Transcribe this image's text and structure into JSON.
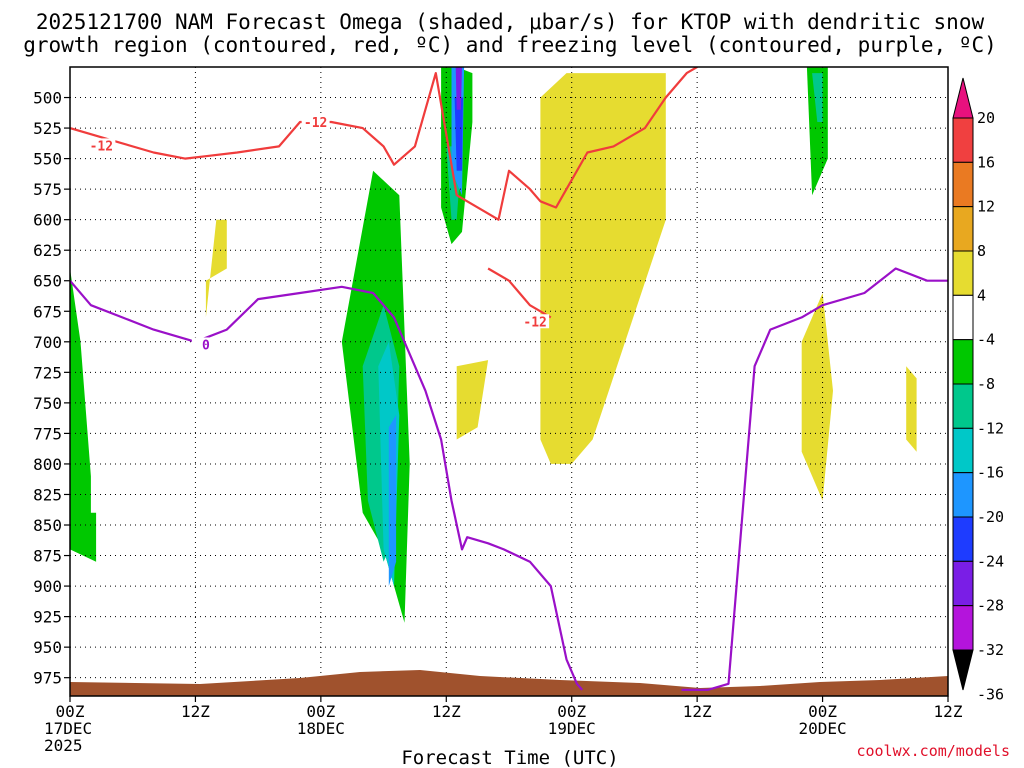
{
  "chart_data": {
    "type": "heatmap",
    "title_line1": "2025121700 NAM Forecast Omega (shaded, μbar/s) for KTOP with dendritic snow",
    "title_line2": "growth region (contoured, red, ºC) and freezing level (contoured, purple, ºC)",
    "xlabel": "Forecast Time (UTC)",
    "credit": "coolwx.com/models",
    "x_range_hours": [
      0,
      84
    ],
    "y_range_mb": [
      475,
      990
    ],
    "y_ticks": [
      500,
      525,
      550,
      575,
      600,
      625,
      650,
      675,
      700,
      725,
      750,
      775,
      800,
      825,
      850,
      875,
      900,
      925,
      950,
      975
    ],
    "x_ticks": [
      {
        "hour": 0,
        "line1": "00Z",
        "line2": "17DEC",
        "line3": "2025"
      },
      {
        "hour": 12,
        "line1": "12Z",
        "line2": "",
        "line3": ""
      },
      {
        "hour": 24,
        "line1": "00Z",
        "line2": "18DEC",
        "line3": ""
      },
      {
        "hour": 36,
        "line1": "12Z",
        "line2": "",
        "line3": ""
      },
      {
        "hour": 48,
        "line1": "00Z",
        "line2": "19DEC",
        "line3": ""
      },
      {
        "hour": 60,
        "line1": "12Z",
        "line2": "",
        "line3": ""
      },
      {
        "hour": 72,
        "line1": "00Z",
        "line2": "20DEC",
        "line3": ""
      },
      {
        "hour": 84,
        "line1": "12Z",
        "line2": "",
        "line3": ""
      }
    ],
    "colorbar": {
      "levels": [
        "20",
        "16",
        "12",
        "8",
        "4",
        "-4",
        "-8",
        "-12",
        "-16",
        "-20",
        "-24",
        "-28",
        "-32",
        "-36"
      ],
      "bins": [
        {
          "lo": 20,
          "hi": 24,
          "color": "#e8117e"
        },
        {
          "lo": 16,
          "hi": 20,
          "color": "#f04040"
        },
        {
          "lo": 12,
          "hi": 16,
          "color": "#ea7a22"
        },
        {
          "lo": 8,
          "hi": 12,
          "color": "#e8a820"
        },
        {
          "lo": 4,
          "hi": 8,
          "color": "#e6dc30"
        },
        {
          "lo": -4,
          "hi": 4,
          "color": "#ffffff"
        },
        {
          "lo": -8,
          "hi": -4,
          "color": "#00c800"
        },
        {
          "lo": -12,
          "hi": -8,
          "color": "#00c88c"
        },
        {
          "lo": -16,
          "hi": -12,
          "color": "#00c8c8"
        },
        {
          "lo": -20,
          "hi": -16,
          "color": "#1e96ff"
        },
        {
          "lo": -24,
          "hi": -20,
          "color": "#1e3cff"
        },
        {
          "lo": -28,
          "hi": -24,
          "color": "#7a1ee6"
        },
        {
          "lo": -32,
          "hi": -28,
          "color": "#b414dc"
        },
        {
          "lo": -36,
          "hi": -32,
          "color": "#a0a0a0"
        }
      ]
    },
    "omega_regions": [
      {
        "name": "green-early",
        "color": "#00c800",
        "hours": [
          0,
          0,
          2.5,
          2.5,
          2,
          2,
          1
        ],
        "mb": [
          640,
          870,
          880,
          840,
          840,
          810,
          700
        ]
      },
      {
        "name": "yellow-12z",
        "color": "#e6dc30",
        "hours": [
          13,
          15,
          15,
          14,
          13
        ],
        "mb": [
          650,
          640,
          600,
          600,
          680
        ]
      },
      {
        "name": "yellow-tall-19dec",
        "color": "#e6dc30",
        "hours": [
          47.5,
          57,
          57,
          50,
          48,
          46,
          45,
          45
        ],
        "mb": [
          480,
          480,
          600,
          780,
          800,
          800,
          780,
          500
        ]
      },
      {
        "name": "yellow-mid",
        "color": "#e6dc30",
        "hours": [
          37,
          40,
          39,
          37
        ],
        "mb": [
          720,
          715,
          770,
          780
        ]
      },
      {
        "name": "yellow-20dec",
        "color": "#e6dc30",
        "hours": [
          70,
          72,
          73,
          72,
          70
        ],
        "mb": [
          700,
          660,
          740,
          830,
          790
        ]
      },
      {
        "name": "yellow-right",
        "color": "#e6dc30",
        "hours": [
          80,
          81,
          81,
          80
        ],
        "mb": [
          720,
          730,
          790,
          780
        ]
      },
      {
        "name": "green-main",
        "color": "#00c800",
        "hours": [
          26,
          29,
          31.5,
          32.5,
          32,
          30,
          28
        ],
        "mb": [
          700,
          560,
          580,
          800,
          930,
          870,
          840
        ]
      },
      {
        "name": "teal-main",
        "color": "#00c88c",
        "hours": [
          28,
          30,
          31.5,
          31,
          30,
          28.5
        ],
        "mb": [
          720,
          670,
          720,
          860,
          880,
          830
        ]
      },
      {
        "name": "cyan-main",
        "color": "#00c8c8",
        "hours": [
          29.5,
          30.5,
          31.5,
          31,
          30
        ],
        "mb": [
          720,
          700,
          760,
          900,
          870
        ]
      },
      {
        "name": "blue-main",
        "color": "#1e96ff",
        "hours": [
          30.5,
          31.2,
          31.2,
          30.5
        ],
        "mb": [
          770,
          760,
          880,
          900
        ]
      },
      {
        "name": "green-column",
        "color": "#00c800",
        "hours": [
          35.5,
          37,
          38.5,
          38.5,
          37.5,
          36.5,
          35.5
        ],
        "mb": [
          475,
          475,
          480,
          520,
          610,
          620,
          590
        ]
      },
      {
        "name": "teal-column",
        "color": "#00c88c",
        "hours": [
          36,
          37.5,
          37,
          36.5
        ],
        "mb": [
          540,
          540,
          600,
          600
        ]
      },
      {
        "name": "blue-column",
        "color": "#1e96ff",
        "hours": [
          36.5,
          37.7,
          37.5,
          36.5
        ],
        "mb": [
          475,
          475,
          580,
          560
        ]
      },
      {
        "name": "navy-column",
        "color": "#1e3cff",
        "hours": [
          36.8,
          37.6,
          37.5,
          37
        ],
        "mb": [
          500,
          500,
          560,
          560
        ]
      },
      {
        "name": "purple-column",
        "color": "#7a1ee6",
        "hours": [
          36.9,
          37.5,
          37.4,
          37
        ],
        "mb": [
          475,
          475,
          510,
          510
        ]
      },
      {
        "name": "green-20dec",
        "color": "#00c800",
        "hours": [
          70.5,
          72.5,
          72.5,
          71
        ],
        "mb": [
          475,
          475,
          550,
          580
        ]
      },
      {
        "name": "teal-20dec",
        "color": "#00c88c",
        "hours": [
          71,
          72,
          72,
          71.5
        ],
        "mb": [
          480,
          480,
          520,
          520
        ]
      }
    ],
    "red_contour_label": "-12",
    "red_contour_upper": {
      "hours": [
        0,
        4,
        8,
        11,
        13,
        16,
        20,
        22,
        25,
        28,
        30,
        31,
        33,
        35,
        37,
        40,
        41,
        42,
        44,
        45,
        46.5,
        47.5,
        49.5,
        52,
        55,
        57,
        59,
        60
      ],
      "mb": [
        525,
        535,
        545,
        550,
        548,
        545,
        540,
        520,
        520,
        525,
        540,
        555,
        540,
        480,
        580,
        595,
        600,
        560,
        575,
        585,
        590,
        575,
        545,
        540,
        525,
        500,
        480,
        475
      ]
    },
    "red_contour_lower": {
      "hours": [
        40,
        42,
        43,
        44,
        45,
        46
      ],
      "mb": [
        640,
        650,
        660,
        670,
        675,
        680
      ]
    },
    "purple_contour_label": "0",
    "purple_contour_main": {
      "hours": [
        0,
        2,
        5,
        8,
        12,
        15,
        18,
        22,
        26,
        29,
        31,
        34,
        35.5,
        36.5,
        37.5,
        38,
        40,
        41.5,
        44,
        46,
        47.5,
        48.5,
        49
      ],
      "mb": [
        650,
        670,
        680,
        690,
        700,
        690,
        665,
        660,
        655,
        660,
        680,
        740,
        780,
        830,
        870,
        860,
        865,
        870,
        880,
        900,
        960,
        980,
        985
      ]
    },
    "purple_contour_right": {
      "hours": [
        58.5,
        61,
        63,
        65.5,
        67,
        70,
        72,
        76,
        79,
        82,
        84
      ],
      "mb": [
        985,
        985,
        980,
        720,
        690,
        680,
        670,
        660,
        640,
        650,
        650
      ]
    }
  }
}
